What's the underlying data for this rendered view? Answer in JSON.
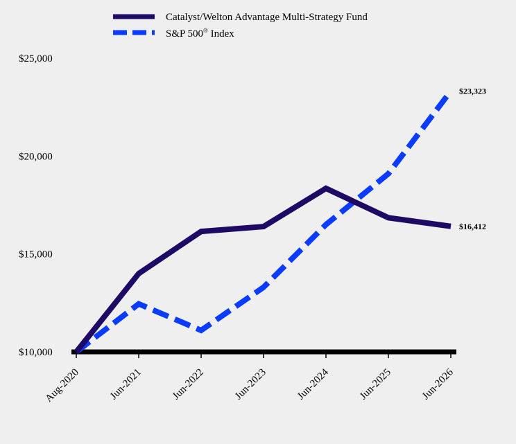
{
  "chart_data": {
    "type": "line",
    "categories": [
      "Aug-2020",
      "Jun-2021",
      "Jun-2022",
      "Jun-2023",
      "Jun-2024",
      "Jun-2025",
      "Jun-2026"
    ],
    "series": [
      {
        "name": "Catalyst/Welton Advantage Multi-Strategy Fund",
        "values": [
          10000,
          14000,
          16150,
          16400,
          18350,
          16850,
          16412
        ],
        "color": "#1e0a64",
        "style": "solid",
        "end_label": "$16,412"
      },
      {
        "name": "S&P 500",
        "name_suffix": " Index",
        "name_superscript": "®",
        "values": [
          10000,
          12450,
          11100,
          13300,
          16500,
          19100,
          23323
        ],
        "color": "#0a3cff",
        "style": "dashed",
        "end_label": "$23,323"
      }
    ],
    "y_ticks": [
      "$10,000",
      "$15,000",
      "$20,000",
      "$25,000"
    ],
    "y_tick_values": [
      10000,
      15000,
      20000,
      25000
    ],
    "ylim": [
      10000,
      25000
    ],
    "grid": false,
    "legend_position": "top-left",
    "baseline_color": "#000000"
  }
}
